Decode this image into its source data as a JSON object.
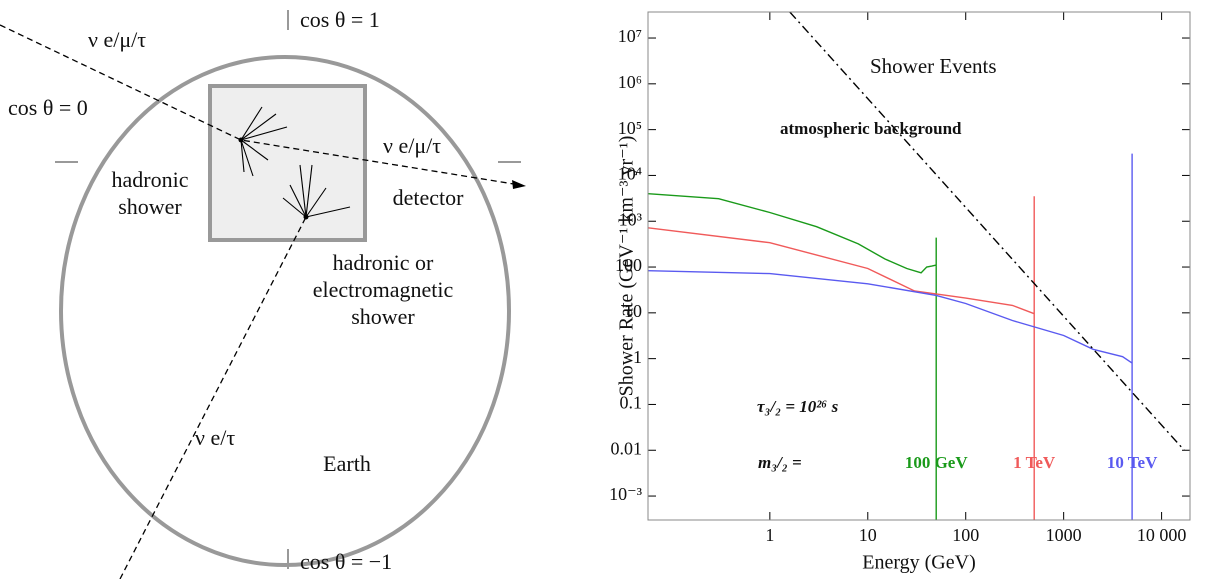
{
  "diagram": {
    "labels": [
      {
        "lines": [
          "cos θ = 1"
        ]
      },
      {
        "lines": [
          "ν e/μ/τ"
        ]
      },
      {
        "lines": [
          "cos θ = 0"
        ]
      },
      {
        "lines": [
          "ν e/μ/τ"
        ]
      },
      {
        "lines": [
          "hadronic",
          "shower"
        ]
      },
      {
        "lines": [
          "detector"
        ]
      },
      {
        "lines": [
          "hadronic or",
          "electromagnetic",
          "shower"
        ]
      },
      {
        "lines": [
          "ν e/τ"
        ]
      },
      {
        "lines": [
          "Earth"
        ]
      },
      {
        "lines": [
          "cos θ = −1"
        ]
      }
    ]
  },
  "chart_data": {
    "type": "line",
    "x_label": "Energy (GeV)",
    "y_label": "Shower Rate (GeV⁻¹ km⁻³ yr⁻¹)",
    "annotations": [
      "Shower Events",
      "atmospheric background",
      "τ₃/₂ = 10²⁶ s",
      "m₃/₂ ="
    ],
    "log_x": true,
    "log_y": true,
    "xlim": [
      0.057,
      19500
    ],
    "ylim": [
      0.0003,
      37000000
    ],
    "xticks": [
      1,
      10,
      100,
      1000,
      {
        "value": 10000,
        "label": "10 000"
      }
    ],
    "yticks": [
      {
        "value": 0.001,
        "label": "10⁻³"
      },
      0.01,
      0.1,
      1,
      10,
      100,
      {
        "value": 1000,
        "label": "10³"
      },
      {
        "value": 10000,
        "label": "10⁴"
      },
      {
        "value": 100000,
        "label": "10⁵"
      },
      {
        "value": 1000000,
        "label": "10⁶"
      },
      {
        "value": 10000000,
        "label": "10⁷"
      }
    ],
    "series": [
      {
        "name": "100 GeV",
        "color": "#1a9a1a",
        "x": [
          0.057,
          0.3,
          1,
          3,
          8,
          15,
          25,
          35,
          40,
          45,
          50,
          50,
          50
        ],
        "values": [
          4000,
          3100,
          1550,
          760,
          320,
          150,
          93,
          75,
          100,
          105,
          110,
          440,
          0.0003
        ]
      },
      {
        "name": "1 TeV",
        "color": "#f05a5a",
        "x": [
          0.057,
          1,
          10,
          30,
          100,
          300,
          500,
          500,
          500
        ],
        "values": [
          720,
          340,
          93,
          30,
          21,
          14.5,
          9.6,
          3500,
          0.0003
        ]
      },
      {
        "name": "10 TeV",
        "color": "#5a5af0",
        "x": [
          0.057,
          1,
          10,
          50,
          100,
          300,
          1000,
          2000,
          4000,
          5000,
          5000,
          5000
        ],
        "values": [
          83,
          72,
          43,
          24,
          16,
          6.8,
          3.2,
          1.6,
          1.1,
          0.8,
          30000,
          0.0003
        ]
      },
      {
        "name": "atmospheric background",
        "color": "#000000",
        "dash": "dashdot",
        "x": [
          1.6,
          100,
          17000
        ],
        "values": [
          37000000,
          2000,
          0.01
        ]
      }
    ]
  }
}
